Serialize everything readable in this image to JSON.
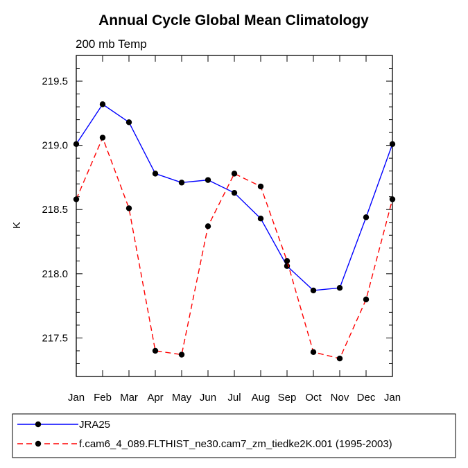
{
  "chart_data": {
    "type": "line",
    "title": "Annual Cycle Global Mean Climatology",
    "subtitle": "200 mb Temp",
    "xlabel": "",
    "ylabel": "K",
    "categories": [
      "Jan",
      "Feb",
      "Mar",
      "Apr",
      "May",
      "Jun",
      "Jul",
      "Aug",
      "Sep",
      "Oct",
      "Nov",
      "Dec",
      "Jan"
    ],
    "ylim": [
      217.2,
      219.7
    ],
    "yticks": [
      217.5,
      218.0,
      218.5,
      219.0,
      219.5
    ],
    "ytick_labels": [
      "217.5",
      "218.0",
      "218.5",
      "219.0",
      "219.5"
    ],
    "grid": false,
    "legend_position": "bottom",
    "series": [
      {
        "name": "JRA25",
        "color": "#0000ff",
        "dash": "solid",
        "values": [
          219.01,
          219.32,
          219.18,
          218.78,
          218.71,
          218.73,
          218.63,
          218.43,
          218.06,
          217.87,
          217.89,
          218.44,
          219.01
        ]
      },
      {
        "name": "f.cam6_4_089.FLTHIST_ne30.cam7_zm_tiedke2K.001 (1995-2003)",
        "color": "#ff0000",
        "dash": "dashed",
        "values": [
          218.58,
          219.06,
          218.51,
          217.4,
          217.37,
          218.37,
          218.78,
          218.68,
          218.1,
          217.39,
          217.34,
          217.8,
          218.58
        ]
      }
    ]
  }
}
